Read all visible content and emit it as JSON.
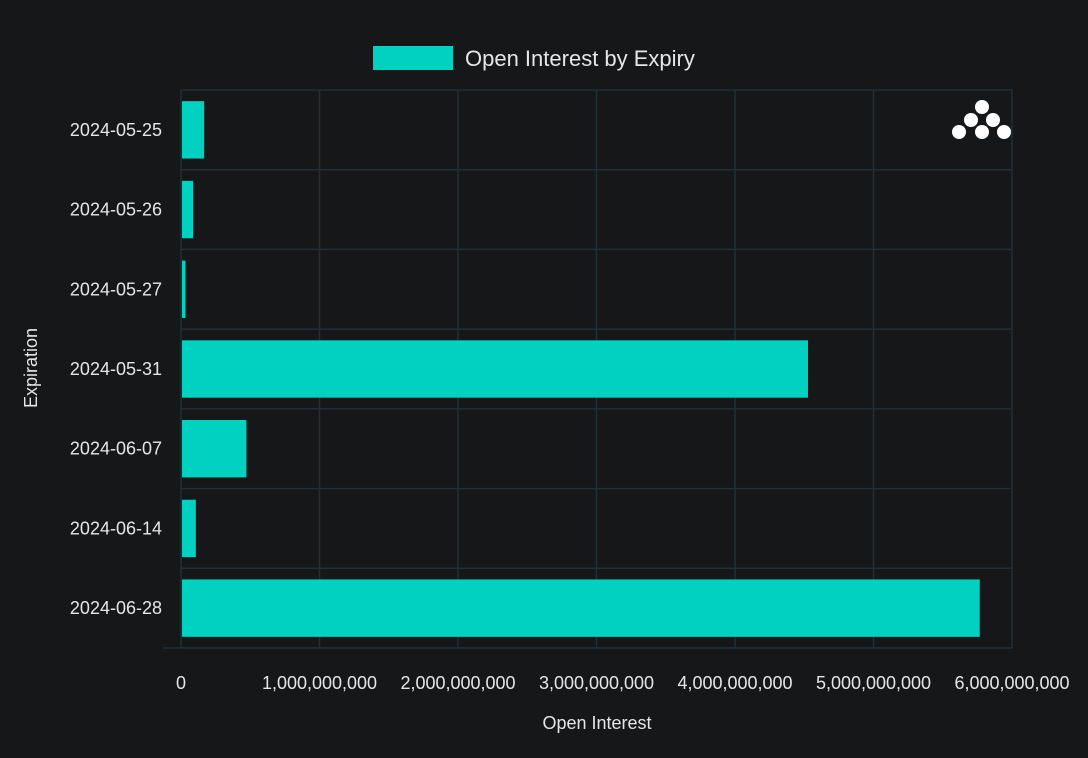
{
  "chart_data": {
    "type": "bar",
    "orientation": "horizontal",
    "categories": [
      "2024-05-25",
      "2024-05-26",
      "2024-05-27",
      "2024-05-31",
      "2024-06-07",
      "2024-06-14",
      "2024-06-28"
    ],
    "series": [
      {
        "name": "Open Interest by Expiry",
        "values": [
          160000000,
          80000000,
          25000000,
          4520000000,
          465000000,
          100000000,
          5760000000
        ]
      }
    ],
    "xlabel": "Open Interest",
    "ylabel": "Expiration",
    "xlim": [
      0,
      6000000000
    ],
    "xticks": [
      0,
      1000000000,
      2000000000,
      3000000000,
      4000000000,
      5000000000,
      6000000000
    ],
    "xtick_labels": [
      "0",
      "1,000,000,000",
      "2,000,000,000",
      "3,000,000,000",
      "4,000,000,000",
      "5,000,000,000",
      "6,000,000,000"
    ],
    "grid": true,
    "legend_position": "top-center",
    "colors": {
      "background": "#151719",
      "bar": "#00d1c1",
      "grid": "#1f3038",
      "text": "#e6e6e6"
    },
    "logo_icon": "dots-pyramid-logo-icon"
  }
}
